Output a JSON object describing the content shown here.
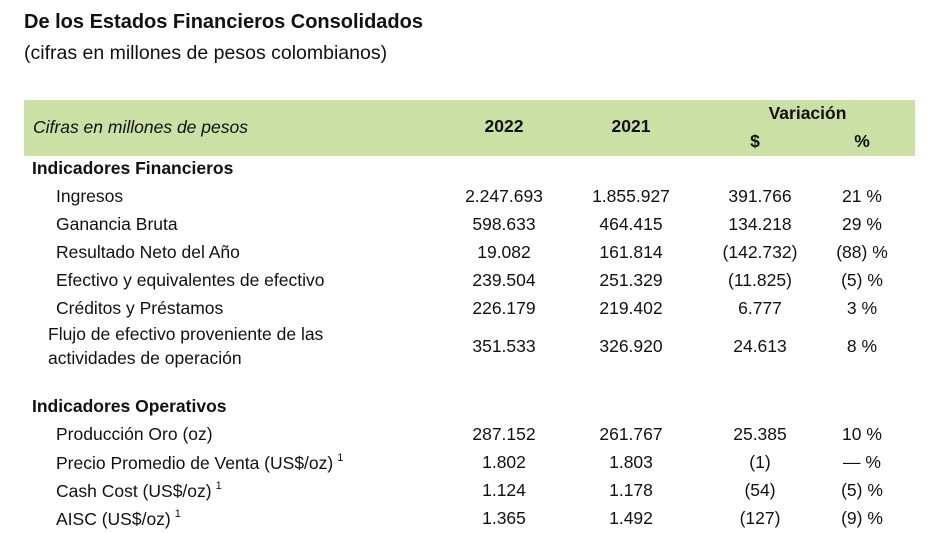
{
  "title": "De los Estados Financieros Consolidados",
  "subtitle": "(cifras en millones de pesos colombianos)",
  "header": {
    "label": "Cifras en millones de pesos",
    "col_2022": "2022",
    "col_2021": "2021",
    "variacion": "Variación",
    "var_abs": "$",
    "var_pct": "%"
  },
  "colors": {
    "header_band": "#cbe0a4"
  },
  "sections": [
    {
      "title": "Indicadores Financieros",
      "rows": [
        {
          "label": "Ingresos",
          "sup": "",
          "v2022": "2.247.693",
          "v2021": "1.855.927",
          "var": "391.766",
          "pct": "21 %"
        },
        {
          "label": "Ganancia Bruta",
          "sup": "",
          "v2022": "598.633",
          "v2021": "464.415",
          "var": "134.218",
          "pct": "29 %"
        },
        {
          "label": "Resultado Neto del Año",
          "sup": "",
          "v2022": "19.082",
          "v2021": "161.814",
          "var": "(142.732)",
          "pct": "(88) %"
        },
        {
          "label": "Efectivo y equivalentes de efectivo",
          "sup": "",
          "v2022": "239.504",
          "v2021": "251.329",
          "var": "(11.825)",
          "pct": "(5) %"
        },
        {
          "label": "Créditos y Préstamos",
          "sup": "",
          "v2022": "226.179",
          "v2021": "219.402",
          "var": "6.777",
          "pct": "3 %"
        },
        {
          "label": "Flujo de efectivo proveniente de las actividades de operación",
          "sup": "",
          "v2022": "351.533",
          "v2021": "326.920",
          "var": "24.613",
          "pct": "8 %"
        }
      ]
    },
    {
      "title": "Indicadores Operativos",
      "rows": [
        {
          "label": "Producción Oro (oz)",
          "sup": "",
          "v2022": "287.152",
          "v2021": "261.767",
          "var": "25.385",
          "pct": "10 %"
        },
        {
          "label": "Precio Promedio de Venta (US$/oz)",
          "sup": "1",
          "v2022": "1.802",
          "v2021": "1.803",
          "var": "(1)",
          "pct": "— %"
        },
        {
          "label": "Cash Cost (US$/oz)",
          "sup": "1",
          "v2022": "1.124",
          "v2021": "1.178",
          "var": "(54)",
          "pct": "(5) %"
        },
        {
          "label": "AISC (US$/oz)",
          "sup": "1",
          "v2022": "1.365",
          "v2021": "1.492",
          "var": "(127)",
          "pct": "(9) %"
        }
      ]
    }
  ]
}
